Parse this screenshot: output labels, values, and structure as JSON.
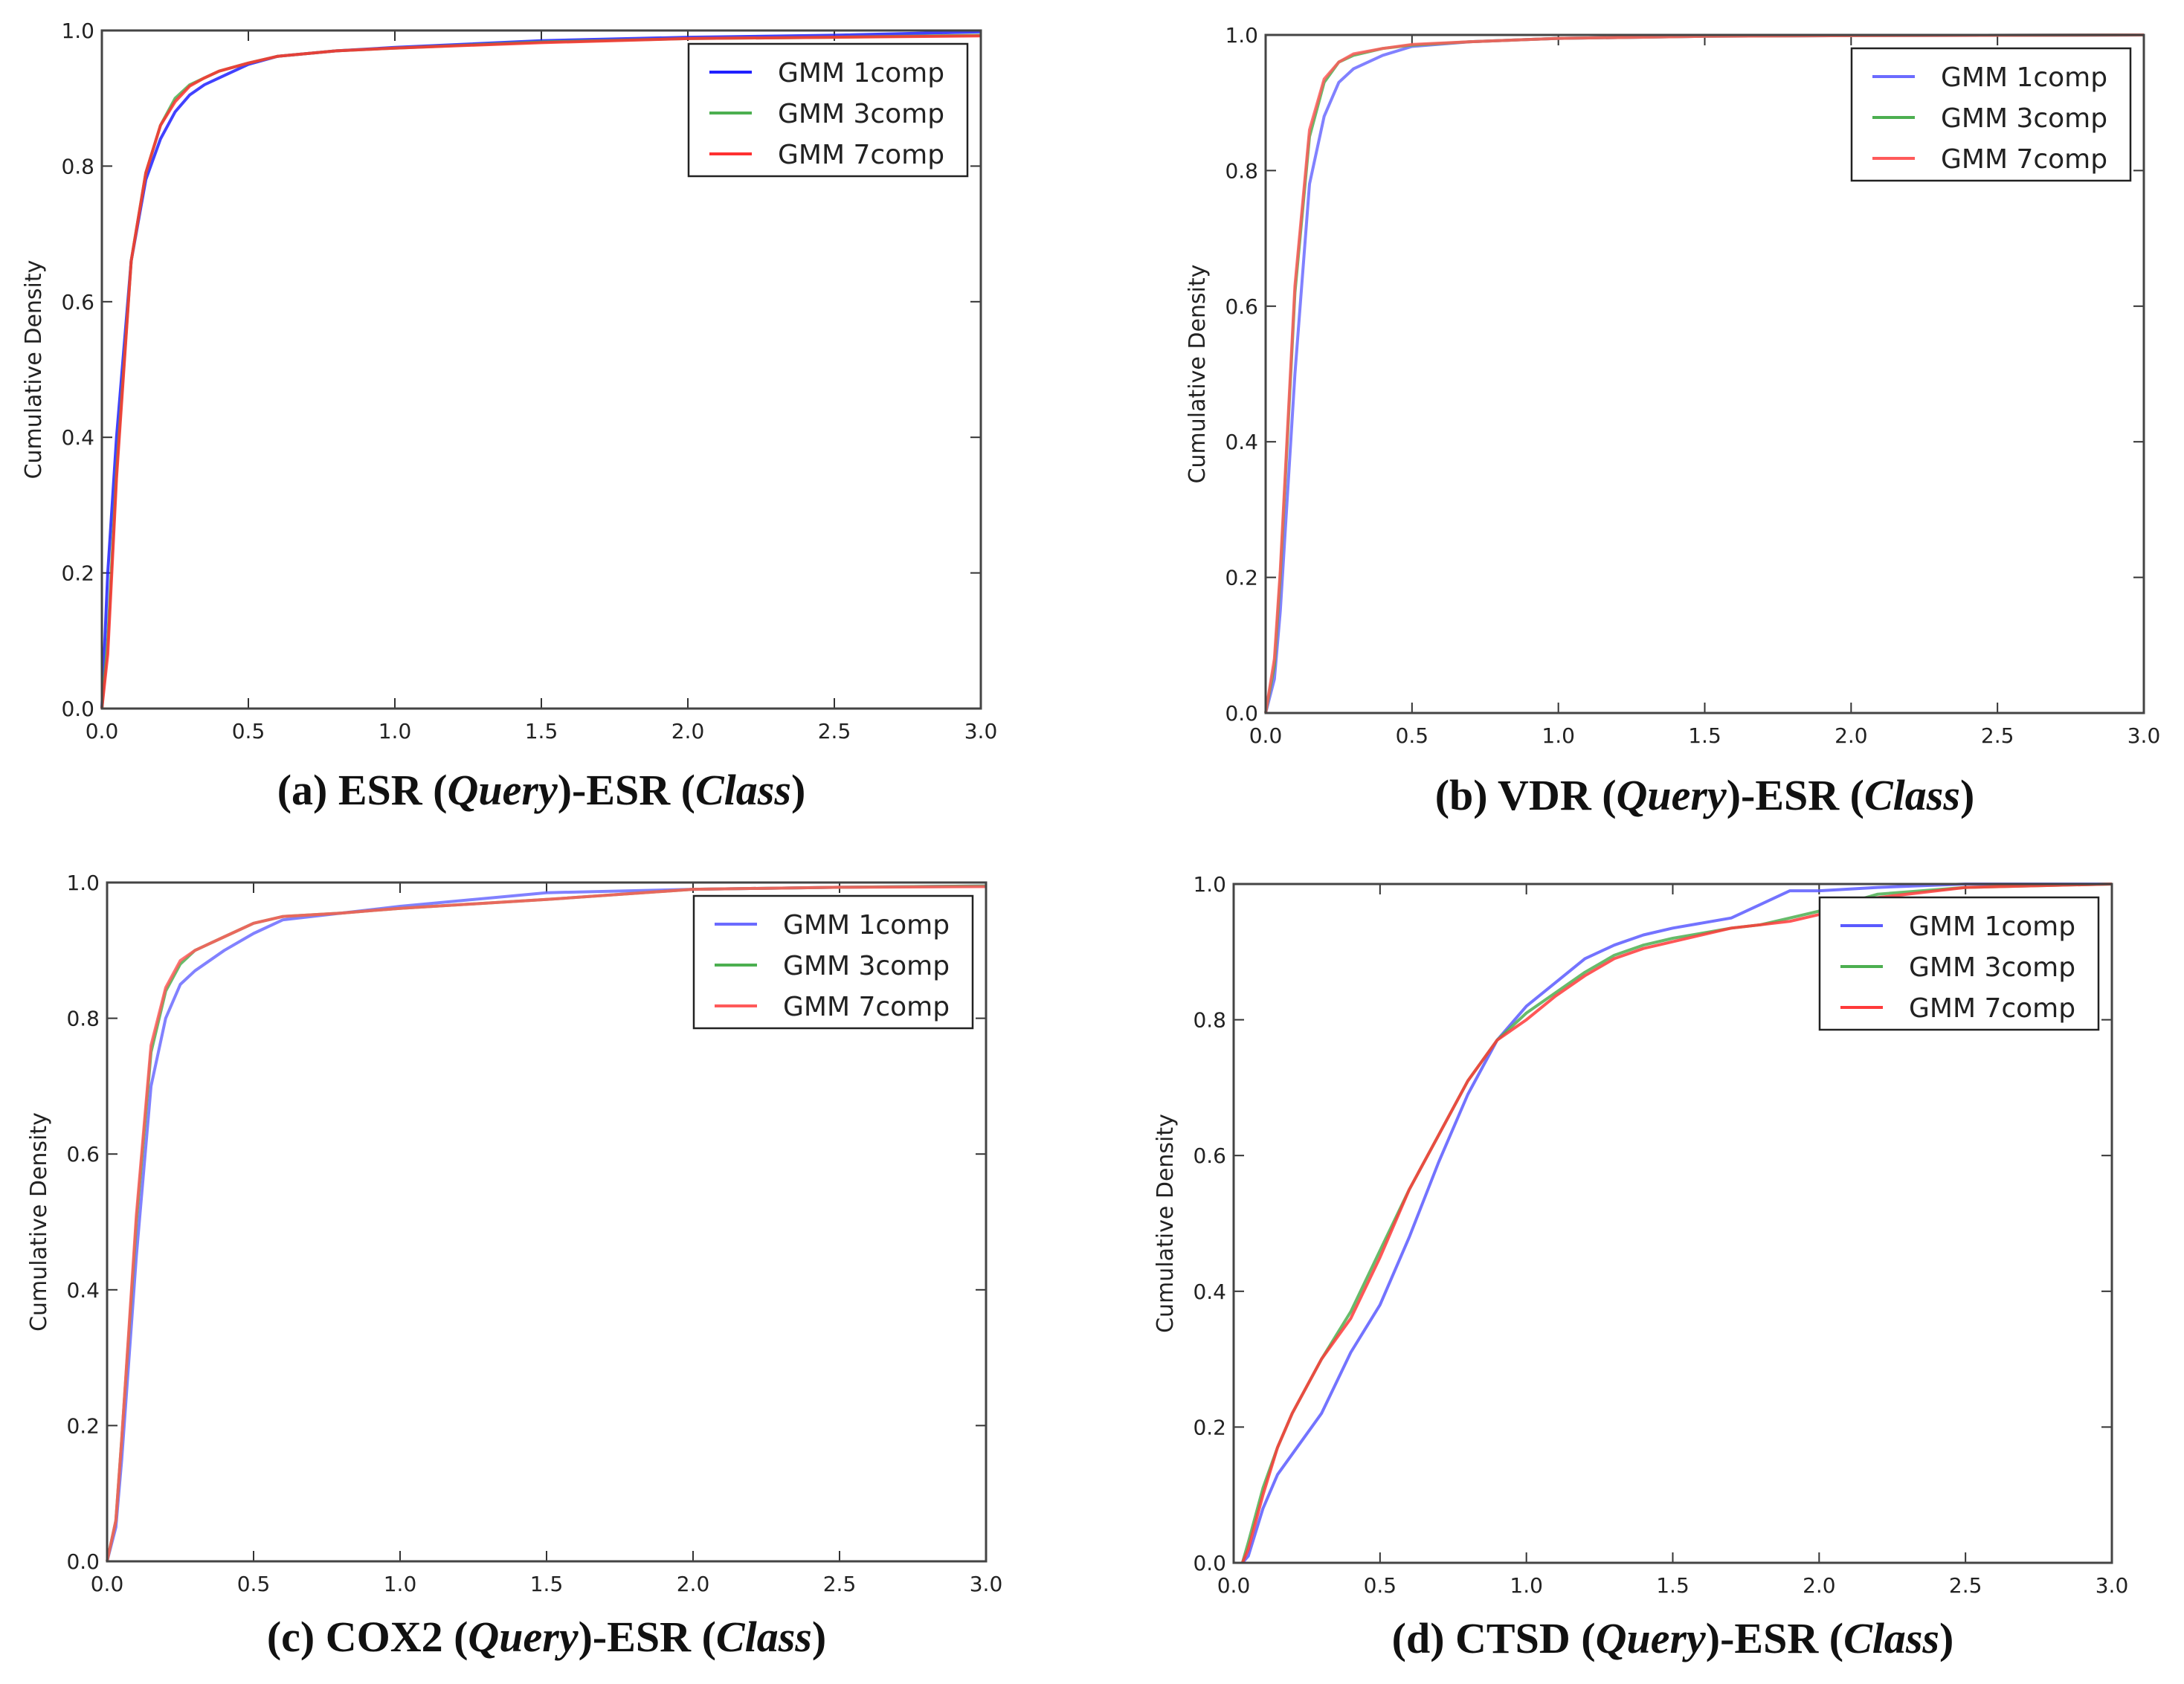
{
  "chart_data": [
    {
      "type": "line",
      "panel": "a",
      "caption": {
        "prefix": "(a) ESR (",
        "query": "Query",
        "mid": ")-ESR (",
        "class": "Class",
        "suffix": ")"
      },
      "ylabel": "Cumulative Density",
      "xlim": [
        0,
        3
      ],
      "ylim": [
        0,
        1
      ],
      "xticks": [
        "0.0",
        "0.5",
        "1.0",
        "1.5",
        "2.0",
        "2.5",
        "3.0"
      ],
      "yticks": [
        "0.0",
        "0.2",
        "0.4",
        "0.6",
        "0.8",
        "1.0"
      ],
      "legend_position": "top-right",
      "x": [
        0,
        0.02,
        0.05,
        0.1,
        0.15,
        0.2,
        0.25,
        0.3,
        0.35,
        0.4,
        0.5,
        0.6,
        0.8,
        1.0,
        1.5,
        2.0,
        2.5,
        3.0
      ],
      "series": [
        {
          "name": "GMM 1comp",
          "color": "#2020ff",
          "values": [
            0,
            0.2,
            0.4,
            0.66,
            0.78,
            0.84,
            0.88,
            0.905,
            0.92,
            0.93,
            0.95,
            0.962,
            0.97,
            0.975,
            0.985,
            0.99,
            0.993,
            0.998
          ]
        },
        {
          "name": "GMM 3comp",
          "color": "#4caf50",
          "values": [
            0,
            0.1,
            0.35,
            0.66,
            0.79,
            0.86,
            0.9,
            0.92,
            0.93,
            0.94,
            0.952,
            0.962,
            0.97,
            0.974,
            0.983,
            0.988,
            0.99,
            0.993
          ]
        },
        {
          "name": "GMM 7comp",
          "color": "#ff3030",
          "values": [
            0,
            0.08,
            0.34,
            0.66,
            0.79,
            0.86,
            0.895,
            0.918,
            0.93,
            0.94,
            0.952,
            0.962,
            0.97,
            0.974,
            0.982,
            0.988,
            0.99,
            0.992
          ]
        }
      ]
    },
    {
      "type": "line",
      "panel": "b",
      "caption": {
        "prefix": "(b) VDR (",
        "query": "Query",
        "mid": ")-ESR (",
        "class": "Class",
        "suffix": ")"
      },
      "ylabel": "Cumulative Density",
      "xlim": [
        0,
        3
      ],
      "ylim": [
        0,
        1
      ],
      "xticks": [
        "0.0",
        "0.5",
        "1.0",
        "1.5",
        "2.0",
        "2.5",
        "3.0"
      ],
      "yticks": [
        "0.0",
        "0.2",
        "0.4",
        "0.6",
        "0.8",
        "1.0"
      ],
      "legend_position": "top-right",
      "x": [
        0,
        0.03,
        0.05,
        0.1,
        0.15,
        0.2,
        0.25,
        0.3,
        0.4,
        0.5,
        0.7,
        1.0,
        1.5,
        2.0,
        3.0
      ],
      "series": [
        {
          "name": "GMM 1comp",
          "color": "#6b6bff",
          "values": [
            0,
            0.05,
            0.15,
            0.5,
            0.78,
            0.88,
            0.93,
            0.95,
            0.97,
            0.983,
            0.99,
            0.995,
            0.998,
            0.999,
            1
          ]
        },
        {
          "name": "GMM 3comp",
          "color": "#4caf50",
          "values": [
            0,
            0.07,
            0.2,
            0.62,
            0.85,
            0.93,
            0.96,
            0.97,
            0.98,
            0.985,
            0.99,
            0.995,
            0.998,
            0.999,
            1
          ]
        },
        {
          "name": "GMM 7comp",
          "color": "#ff5a5a",
          "values": [
            0,
            0.08,
            0.21,
            0.63,
            0.86,
            0.935,
            0.96,
            0.972,
            0.98,
            0.986,
            0.99,
            0.995,
            0.998,
            0.999,
            1
          ]
        }
      ]
    },
    {
      "type": "line",
      "panel": "c",
      "caption": {
        "prefix": "(c) COX2 (",
        "query": "Query",
        "mid": ")-ESR (",
        "class": "Class",
        "suffix": ")"
      },
      "ylabel": "Cumulative Density",
      "xlim": [
        0,
        3
      ],
      "ylim": [
        0,
        1
      ],
      "xticks": [
        "0.0",
        "0.5",
        "1.0",
        "1.5",
        "2.0",
        "2.5",
        "3.0"
      ],
      "yticks": [
        "0.0",
        "0.2",
        "0.4",
        "0.6",
        "0.8",
        "1.0"
      ],
      "legend_position": "top-right",
      "x": [
        0,
        0.03,
        0.05,
        0.1,
        0.15,
        0.2,
        0.25,
        0.3,
        0.4,
        0.5,
        0.6,
        0.8,
        1.0,
        1.5,
        2.0,
        2.5,
        3.0
      ],
      "series": [
        {
          "name": "GMM 1comp",
          "color": "#6b6bff",
          "values": [
            0,
            0.05,
            0.15,
            0.45,
            0.7,
            0.8,
            0.85,
            0.87,
            0.9,
            0.925,
            0.945,
            0.955,
            0.965,
            0.985,
            0.99,
            0.993,
            0.995
          ]
        },
        {
          "name": "GMM 3comp",
          "color": "#4caf50",
          "values": [
            0,
            0.06,
            0.18,
            0.5,
            0.75,
            0.84,
            0.88,
            0.9,
            0.92,
            0.94,
            0.95,
            0.955,
            0.962,
            0.975,
            0.99,
            0.993,
            0.995
          ]
        },
        {
          "name": "GMM 7comp",
          "color": "#ff5a5a",
          "values": [
            0,
            0.06,
            0.18,
            0.51,
            0.76,
            0.845,
            0.885,
            0.9,
            0.92,
            0.94,
            0.95,
            0.955,
            0.962,
            0.975,
            0.99,
            0.993,
            0.994
          ]
        }
      ]
    },
    {
      "type": "line",
      "panel": "d",
      "caption": {
        "prefix": "(d) CTSD (",
        "query": "Query",
        "mid": ")-ESR (",
        "class": "Class",
        "suffix": ")"
      },
      "ylabel": "Cumulative Density",
      "xlim": [
        0,
        3
      ],
      "ylim": [
        0,
        1
      ],
      "xticks": [
        "0.0",
        "0.5",
        "1.0",
        "1.5",
        "2.0",
        "2.5",
        "3.0"
      ],
      "yticks": [
        "0.0",
        "0.2",
        "0.4",
        "0.6",
        "0.8",
        "1.0"
      ],
      "legend_position": "top-right",
      "x": [
        0.03,
        0.05,
        0.1,
        0.15,
        0.2,
        0.3,
        0.4,
        0.5,
        0.6,
        0.7,
        0.8,
        0.9,
        1.0,
        1.1,
        1.2,
        1.3,
        1.4,
        1.5,
        1.7,
        1.8,
        1.9,
        2.0,
        2.2,
        2.5,
        3.0
      ],
      "series": [
        {
          "name": "GMM 1comp",
          "color": "#5a5aff",
          "values": [
            0,
            0.01,
            0.08,
            0.13,
            0.16,
            0.22,
            0.31,
            0.38,
            0.48,
            0.59,
            0.69,
            0.77,
            0.82,
            0.855,
            0.89,
            0.91,
            0.925,
            0.935,
            0.95,
            0.97,
            0.99,
            0.99,
            0.995,
            1,
            1
          ]
        },
        {
          "name": "GMM 3comp",
          "color": "#4caf50",
          "values": [
            0,
            0.03,
            0.11,
            0.17,
            0.22,
            0.3,
            0.37,
            0.46,
            0.55,
            0.63,
            0.71,
            0.77,
            0.81,
            0.84,
            0.87,
            0.895,
            0.91,
            0.92,
            0.935,
            0.94,
            0.95,
            0.96,
            0.985,
            0.995,
            1
          ]
        },
        {
          "name": "GMM 7comp",
          "color": "#ff3a3a",
          "values": [
            0,
            0.02,
            0.1,
            0.17,
            0.22,
            0.3,
            0.36,
            0.45,
            0.55,
            0.63,
            0.71,
            0.77,
            0.8,
            0.835,
            0.865,
            0.89,
            0.905,
            0.915,
            0.935,
            0.94,
            0.945,
            0.955,
            0.98,
            0.995,
            1
          ]
        }
      ]
    }
  ]
}
